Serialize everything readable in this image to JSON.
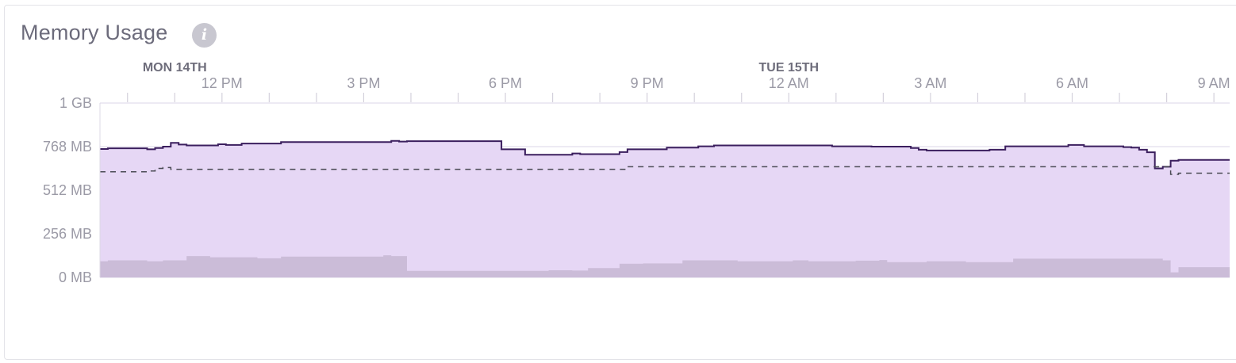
{
  "panel": {
    "title": "Memory Usage",
    "info_icon": "info-icon"
  },
  "colors": {
    "total_fill": "#e6d7f5",
    "total_line": "#3b1f5e",
    "swap_fill": "#cbbcd8",
    "dashed_line": "#4b4b55",
    "grid": "#e2ddec",
    "axis_text": "#9b9aa6",
    "day_text": "#6e6d7b"
  },
  "chart_data": {
    "type": "area",
    "title": "Memory Usage",
    "xlabel": "",
    "ylabel": "",
    "y_unit": "MB",
    "ylim": [
      0,
      1024
    ],
    "y_ticks": [
      {
        "value": 0,
        "label": "0 MB"
      },
      {
        "value": 256,
        "label": "256 MB"
      },
      {
        "value": 512,
        "label": "512 MB"
      },
      {
        "value": 768,
        "label": "768 MB"
      },
      {
        "value": 1024,
        "label": "1 GB"
      }
    ],
    "xlim": [
      "2023-08-14T09:25",
      "2023-08-15T09:20"
    ],
    "x_ticks": [
      {
        "time": "2023-08-14T12:00",
        "label": "12 PM"
      },
      {
        "time": "2023-08-14T15:00",
        "label": "3 PM"
      },
      {
        "time": "2023-08-14T18:00",
        "label": "6 PM"
      },
      {
        "time": "2023-08-14T21:00",
        "label": "9 PM"
      },
      {
        "time": "2023-08-15T00:00",
        "label": "12 AM"
      },
      {
        "time": "2023-08-15T03:00",
        "label": "3 AM"
      },
      {
        "time": "2023-08-15T06:00",
        "label": "6 AM"
      },
      {
        "time": "2023-08-15T09:00",
        "label": "9 AM"
      }
    ],
    "day_labels": [
      {
        "time": "2023-08-14T11:00",
        "label": "MON 14TH"
      },
      {
        "time": "2023-08-15T00:00",
        "label": "TUE 15TH"
      }
    ],
    "grid": true,
    "series": [
      {
        "style": "step-area-line",
        "x": [
          "2023-08-14T09:25",
          "2023-08-14T09:35",
          "2023-08-14T10:25",
          "2023-08-14T10:35",
          "2023-08-14T10:45",
          "2023-08-14T10:55",
          "2023-08-14T11:05",
          "2023-08-14T11:15",
          "2023-08-14T11:55",
          "2023-08-14T12:05",
          "2023-08-14T12:15",
          "2023-08-14T12:25",
          "2023-08-14T13:15",
          "2023-08-14T13:25",
          "2023-08-14T15:35",
          "2023-08-14T15:45",
          "2023-08-14T15:55",
          "2023-08-14T16:05",
          "2023-08-14T16:55",
          "2023-08-14T17:55",
          "2023-08-14T18:25",
          "2023-08-14T19:15",
          "2023-08-14T19:25",
          "2023-08-14T19:35",
          "2023-08-14T20:25",
          "2023-08-14T20:35",
          "2023-08-14T21:25",
          "2023-08-14T22:05",
          "2023-08-14T22:15",
          "2023-08-14T22:25",
          "2023-08-15T00:55",
          "2023-08-15T01:05",
          "2023-08-15T01:45",
          "2023-08-15T02:35",
          "2023-08-15T02:45",
          "2023-08-15T02:55",
          "2023-08-15T04:15",
          "2023-08-15T04:35",
          "2023-08-15T05:55",
          "2023-08-15T06:15",
          "2023-08-15T07:05",
          "2023-08-15T07:15",
          "2023-08-15T07:25",
          "2023-08-15T07:35",
          "2023-08-15T07:45",
          "2023-08-15T07:55",
          "2023-08-15T08:05",
          "2023-08-15T08:15",
          "2023-08-15T09:20"
        ],
        "values": [
          754,
          758,
          752,
          760,
          768,
          790,
          780,
          775,
          782,
          778,
          778,
          786,
          795,
          795,
          802,
          798,
          800,
          800,
          800,
          752,
          720,
          720,
          728,
          724,
          736,
          752,
          762,
          770,
          770,
          775,
          770,
          770,
          768,
          760,
          750,
          745,
          750,
          770,
          778,
          770,
          765,
          762,
          750,
          735,
          640,
          650,
          685,
          690,
          690
        ]
      },
      {
        "style": "dashed-line",
        "x": [
          "2023-08-14T09:25",
          "2023-08-14T10:25",
          "2023-08-14T10:35",
          "2023-08-14T10:45",
          "2023-08-14T10:55",
          "2023-08-14T20:25",
          "2023-08-14T20:35",
          "2023-08-15T07:55",
          "2023-08-15T08:05",
          "2023-08-15T08:15",
          "2023-08-15T09:20"
        ],
        "values": [
          620,
          625,
          640,
          645,
          635,
          635,
          650,
          650,
          605,
          612,
          612
        ]
      },
      {
        "style": "step-area",
        "x": [
          "2023-08-14T09:25",
          "2023-08-14T09:35",
          "2023-08-14T10:25",
          "2023-08-14T10:45",
          "2023-08-14T11:15",
          "2023-08-14T11:45",
          "2023-08-14T12:45",
          "2023-08-14T13:15",
          "2023-08-14T15:25",
          "2023-08-14T15:35",
          "2023-08-14T15:55",
          "2023-08-14T16:55",
          "2023-08-14T17:25",
          "2023-08-14T18:55",
          "2023-08-14T19:25",
          "2023-08-14T19:45",
          "2023-08-14T20:25",
          "2023-08-14T20:55",
          "2023-08-14T21:45",
          "2023-08-14T22:55",
          "2023-08-15T00:05",
          "2023-08-15T00:25",
          "2023-08-15T01:25",
          "2023-08-15T01:55",
          "2023-08-15T02:05",
          "2023-08-15T02:15",
          "2023-08-15T02:55",
          "2023-08-15T03:45",
          "2023-08-15T04:45",
          "2023-08-15T05:15",
          "2023-08-15T07:55",
          "2023-08-15T08:05",
          "2023-08-15T08:15",
          "2023-08-15T09:20"
        ],
        "values": [
          95,
          100,
          95,
          100,
          125,
          118,
          112,
          122,
          130,
          125,
          38,
          38,
          38,
          42,
          40,
          55,
          80,
          82,
          100,
          95,
          100,
          95,
          98,
          102,
          90,
          90,
          95,
          90,
          110,
          110,
          100,
          30,
          60,
          60
        ]
      }
    ]
  }
}
